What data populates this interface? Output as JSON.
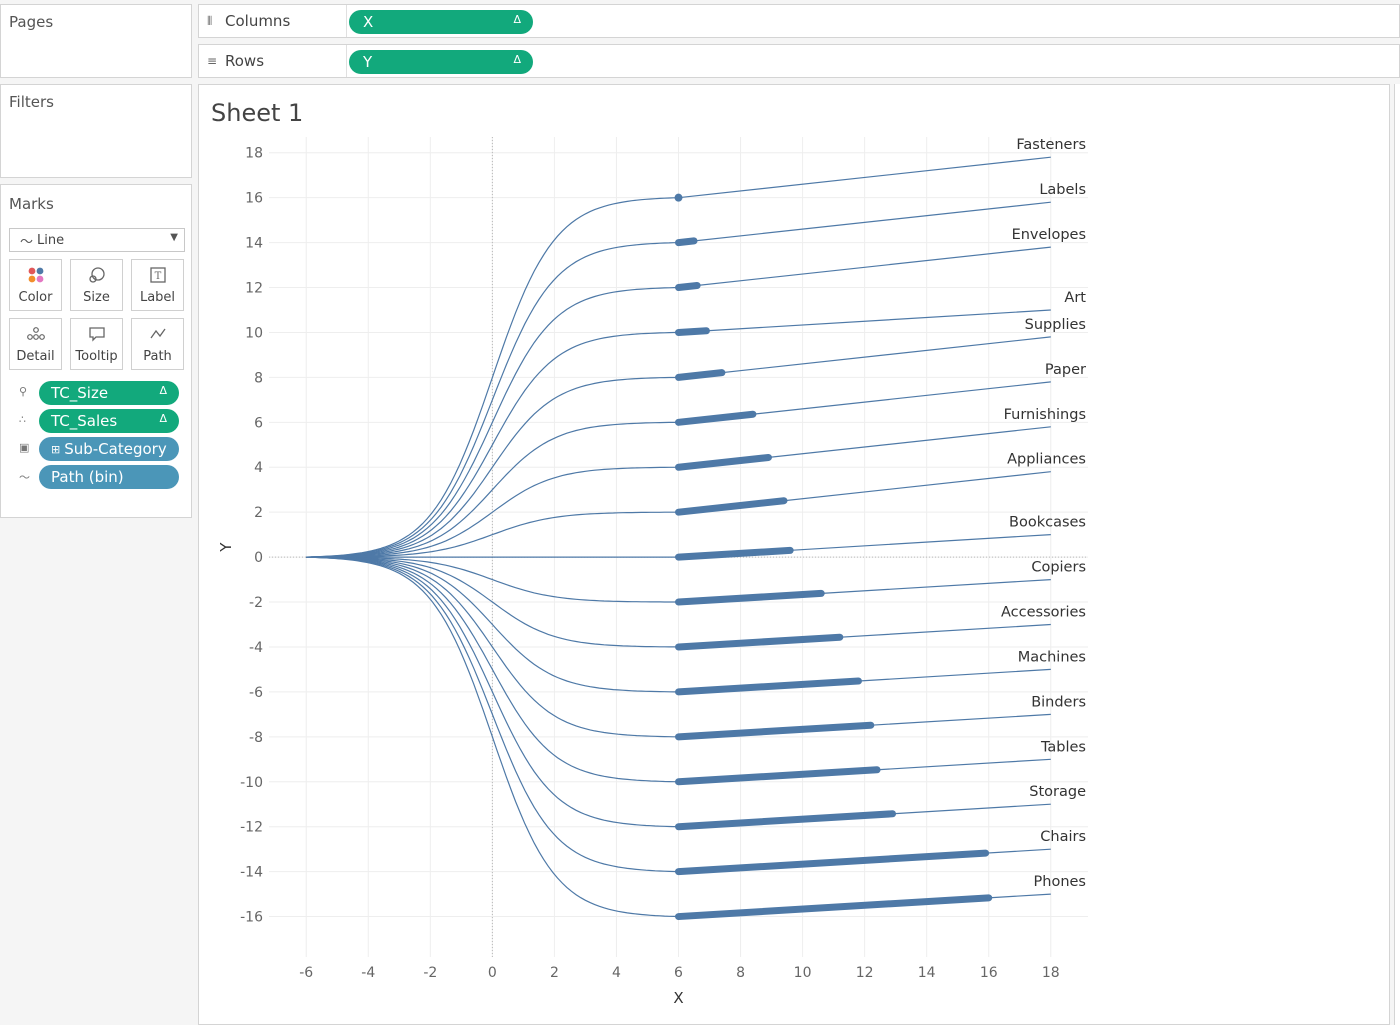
{
  "panels": {
    "pages": "Pages",
    "filters": "Filters",
    "marks": "Marks"
  },
  "shelves": {
    "columns": {
      "label": "Columns",
      "pill": "X",
      "pill_icon": "Δ"
    },
    "rows": {
      "label": "Rows",
      "pill": "Y",
      "pill_icon": "Δ"
    }
  },
  "marks": {
    "type": "Line",
    "buttons": [
      {
        "label": "Color",
        "icon": "color-icon"
      },
      {
        "label": "Size",
        "icon": "size-icon"
      },
      {
        "label": "Label",
        "icon": "label-icon"
      },
      {
        "label": "Detail",
        "icon": "detail-icon"
      },
      {
        "label": "Tooltip",
        "icon": "tooltip-icon"
      },
      {
        "label": "Path",
        "icon": "path-icon"
      }
    ],
    "fields": [
      {
        "label": "TC_Size",
        "pill_icon": "Δ",
        "color": "#12a97c"
      },
      {
        "label": "TC_Sales",
        "pill_icon": "Δ",
        "color": "#12a97c"
      },
      {
        "label": "Sub-Category",
        "prefix": "⊞",
        "color": "#4b96b8"
      },
      {
        "label": "Path (bin)",
        "color": "#4b96b8"
      }
    ]
  },
  "sheet": {
    "title": "Sheet 1"
  },
  "chart_data": {
    "type": "line",
    "xlabel": "X",
    "ylabel": "Y",
    "xlim": [
      -7.2,
      19.2
    ],
    "ylim": [
      -17.8,
      18.7
    ],
    "xticks": [
      -6,
      -4,
      -2,
      0,
      2,
      4,
      6,
      8,
      10,
      12,
      14,
      16,
      18
    ],
    "yticks": [
      18,
      16,
      14,
      12,
      10,
      8,
      6,
      4,
      2,
      0,
      -2,
      -4,
      -6,
      -8,
      -10,
      -12,
      -14,
      -16
    ],
    "grid": true,
    "line_color": "#4e79a7",
    "series": [
      {
        "name": "Fasteners",
        "level": 16,
        "bar_end": 6.0,
        "end_y": 17.8
      },
      {
        "name": "Labels",
        "level": 14,
        "bar_end": 6.5,
        "end_y": 15.8
      },
      {
        "name": "Envelopes",
        "level": 12,
        "bar_end": 6.6,
        "end_y": 13.8
      },
      {
        "name": "Art",
        "level": 10,
        "bar_end": 6.9,
        "end_y": 11.0
      },
      {
        "name": "Supplies",
        "level": 8,
        "bar_end": 7.4,
        "end_y": 9.8
      },
      {
        "name": "Paper",
        "level": 6,
        "bar_end": 8.4,
        "end_y": 7.8
      },
      {
        "name": "Furnishings",
        "level": 4,
        "bar_end": 8.9,
        "end_y": 5.8
      },
      {
        "name": "Appliances",
        "level": 2,
        "bar_end": 9.4,
        "end_y": 3.8
      },
      {
        "name": "Bookcases",
        "level": 0,
        "bar_end": 9.6,
        "end_y": 1.0
      },
      {
        "name": "Copiers",
        "level": -2,
        "bar_end": 10.6,
        "end_y": -1.0
      },
      {
        "name": "Accessories",
        "level": -4,
        "bar_end": 11.2,
        "end_y": -3.0
      },
      {
        "name": "Machines",
        "level": -6,
        "bar_end": 11.8,
        "end_y": -5.0
      },
      {
        "name": "Binders",
        "level": -8,
        "bar_end": 12.2,
        "end_y": -7.0
      },
      {
        "name": "Tables",
        "level": -10,
        "bar_end": 12.4,
        "end_y": -9.0
      },
      {
        "name": "Storage",
        "level": -12,
        "bar_end": 12.9,
        "end_y": -11.0
      },
      {
        "name": "Chairs",
        "level": -14,
        "bar_end": 15.9,
        "end_y": -13.0
      },
      {
        "name": "Phones",
        "level": -16,
        "bar_end": 16.0,
        "end_y": -15.0
      }
    ]
  }
}
